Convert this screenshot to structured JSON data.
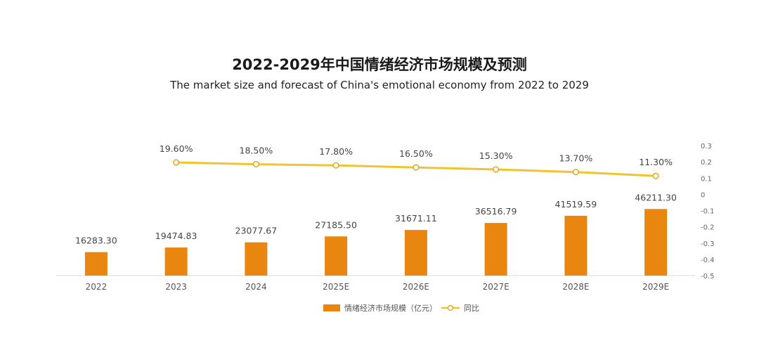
{
  "chart_data": {
    "type": "bar",
    "title": "2022-2029年中国情绪经济市场规模及预测",
    "subtitle": "The market size and forecast of China's emotional economy from 2022 to 2029",
    "categories": [
      "2022",
      "2023",
      "2024",
      "2025E",
      "2026E",
      "2027E",
      "2028E",
      "2029E"
    ],
    "series": [
      {
        "name": "情绪经济市场规模（亿元）",
        "type": "bar",
        "color": "#E8860F",
        "values": [
          16283.3,
          19474.83,
          23077.67,
          27185.5,
          31671.11,
          36516.79,
          41519.59,
          46211.3
        ],
        "labels": [
          "16283.30",
          "19474.83",
          "23077.67",
          "27185.50",
          "31671.11",
          "36516.79",
          "41519.59",
          "46211.30"
        ]
      },
      {
        "name": "同比",
        "type": "line",
        "color": "#EFC42F",
        "values": [
          null,
          0.196,
          0.185,
          0.178,
          0.165,
          0.153,
          0.137,
          0.113
        ],
        "labels": [
          null,
          "19.60%",
          "18.50%",
          "17.80%",
          "16.50%",
          "15.30%",
          "13.70%",
          "11.30%"
        ]
      }
    ],
    "y2_ticks": [
      "0.3",
      "0.2",
      "0.1",
      "0",
      "-0.1",
      "-0.2",
      "-0.3",
      "-0.4",
      "-0.5"
    ],
    "y2lim": [
      -0.5,
      0.3
    ],
    "legend_position": "bottom",
    "grid": false
  }
}
